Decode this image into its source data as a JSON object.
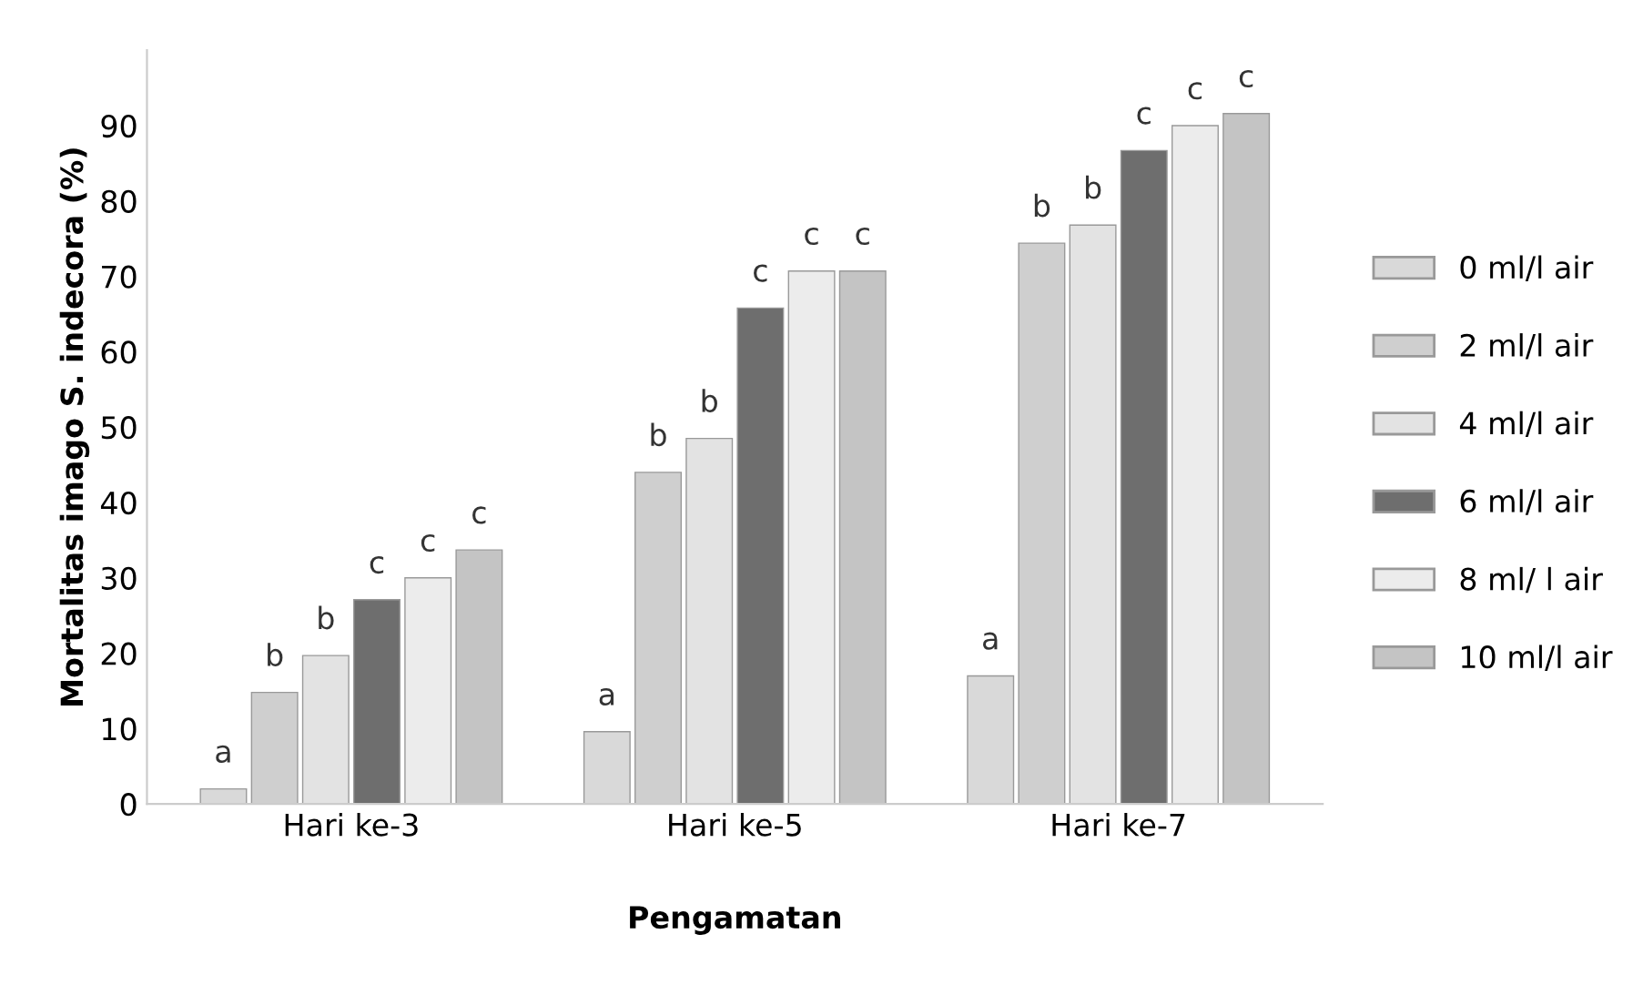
{
  "chart_data": {
    "type": "bar",
    "xlabel": "Pengamatan",
    "ylabel": "Mortalitas imago S. indecora (%)",
    "categories": [
      "Hari ke-3",
      "Hari ke-5",
      "Hari ke-7"
    ],
    "series": [
      {
        "name": "0 ml/l air",
        "color": "#d9d9d9",
        "values": [
          2,
          9.6,
          17
        ],
        "value_labels": [
          "a",
          "a",
          "a"
        ]
      },
      {
        "name": "2 ml/l air",
        "color": "#cfcfcf",
        "values": [
          14.8,
          44,
          74.4
        ],
        "value_labels": [
          "b",
          "b",
          "b"
        ]
      },
      {
        "name": "4 ml/l air",
        "color": "#e3e3e3",
        "values": [
          19.7,
          48.5,
          76.8
        ],
        "value_labels": [
          "b",
          "b",
          "b"
        ]
      },
      {
        "name": "6 ml/l air",
        "color": "#6e6e6e",
        "values": [
          27.1,
          65.8,
          86.7
        ],
        "value_labels": [
          "c",
          "c",
          "c"
        ]
      },
      {
        "name": "8 ml/ l air",
        "color": "#ececec",
        "values": [
          30,
          70.7,
          90
        ],
        "value_labels": [
          "c",
          "c",
          "c"
        ]
      },
      {
        "name": "10 ml/l air",
        "color": "#c4c4c4",
        "values": [
          33.7,
          70.7,
          91.6
        ],
        "value_labels": [
          "c",
          "c",
          "c"
        ]
      }
    ],
    "ylim": [
      0,
      100
    ],
    "yticks": [
      0,
      10,
      20,
      30,
      40,
      50,
      60,
      70,
      80,
      90
    ],
    "legend": "right",
    "grid": false
  }
}
